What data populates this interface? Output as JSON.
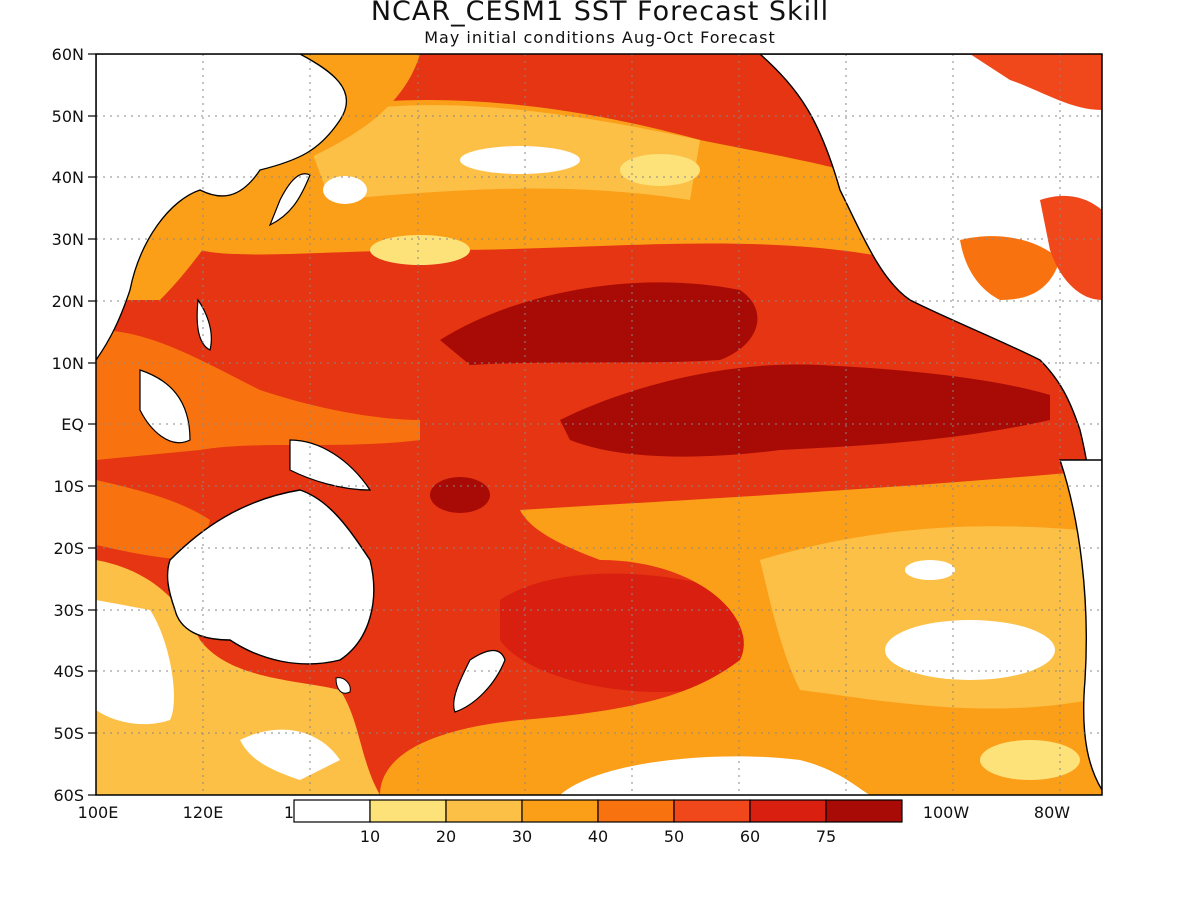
{
  "title": "NCAR_CESM1 SST Forecast Skill",
  "subtitle": "May initial conditions  Aug-Oct Forecast",
  "axes": {
    "lat_labels": [
      "60N",
      "50N",
      "40N",
      "30N",
      "20N",
      "10N",
      "EQ",
      "10S",
      "20S",
      "30S",
      "40S",
      "50S",
      "60S"
    ],
    "lon_labels": [
      "100E",
      "120E",
      "1",
      "100W",
      "80W"
    ]
  },
  "colorbar": {
    "colors": [
      "#ffffff",
      "#fde27a",
      "#fcc046",
      "#fb9f19",
      "#f8730f",
      "#f0481a",
      "#d91f0f",
      "#a80a05"
    ],
    "labels": [
      "10",
      "20",
      "30",
      "40",
      "50",
      "60",
      "75"
    ]
  },
  "map": {
    "ocean_base": "#e53512",
    "land": "#ffffff",
    "coast": "#000000",
    "grid": "#888888"
  }
}
